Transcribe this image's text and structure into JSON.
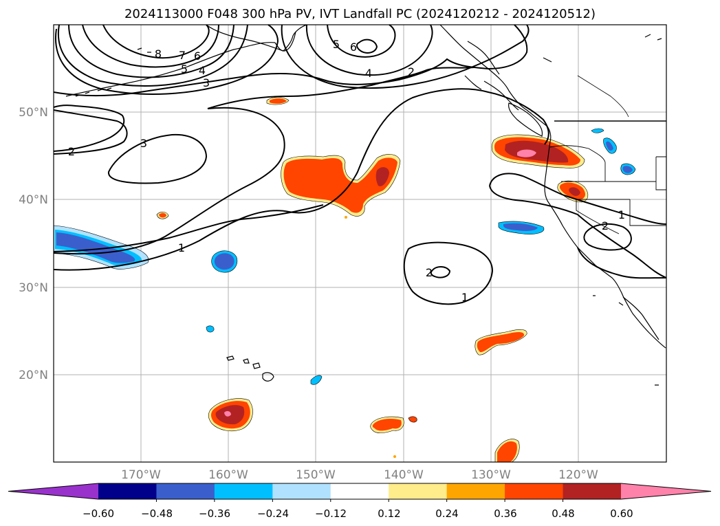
{
  "title": "2024113000 F048 300 hPa PV, IVT Landfall PC (2024120212 - 2024120512)",
  "map": {
    "lat_labels": [
      "50°N",
      "40°N",
      "30°N",
      "20°N"
    ],
    "lon_labels": [
      "170°W",
      "160°W",
      "150°W",
      "140°W",
      "130°W",
      "120°W"
    ],
    "pv_contour_labels": [
      "8",
      "7",
      "6",
      "5",
      "4",
      "3",
      "2",
      "3",
      "5",
      "6",
      "4",
      "2",
      "1",
      "2",
      "1",
      "1",
      "2"
    ]
  },
  "colorbar": {
    "ticks": [
      "−0.60",
      "−0.48",
      "−0.36",
      "−0.24",
      "−0.12",
      "0.12",
      "0.24",
      "0.36",
      "0.48",
      "0.60"
    ],
    "colors": [
      "#9932cc",
      "#00008b",
      "#3a5fcd",
      "#00bfff",
      "#b0e2ff",
      "#ffffff",
      "#ffec8b",
      "#ffa500",
      "#ff4500",
      "#b22222",
      "#ff82ab"
    ]
  }
}
